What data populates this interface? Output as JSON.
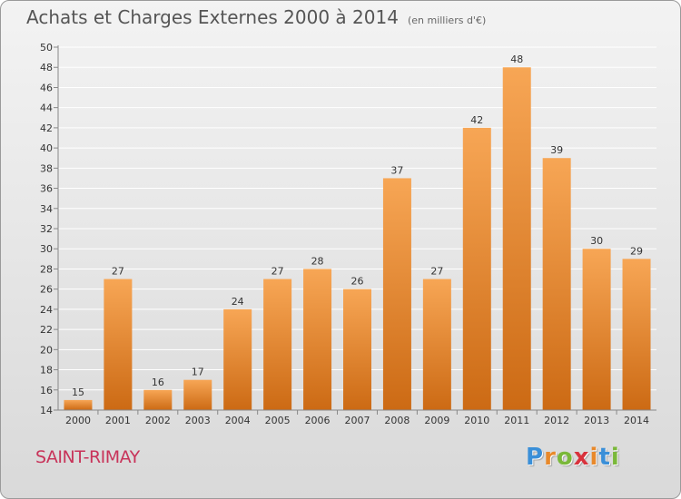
{
  "header": {
    "title": "Achats et Charges Externes 2000 à 2014",
    "unit_note": "(en milliers d'€)"
  },
  "footer": {
    "commune": "SAINT-RIMAY",
    "brand": "Proxiti",
    "brand_letters": [
      {
        "ch": "P",
        "color": "#3a8fd8"
      },
      {
        "ch": "r",
        "color": "#e8892b"
      },
      {
        "ch": "o",
        "color": "#7ab83a"
      },
      {
        "ch": "x",
        "color": "#d8323c"
      },
      {
        "ch": "i",
        "color": "#e8892b"
      },
      {
        "ch": "t",
        "color": "#3a8fd8"
      },
      {
        "ch": "i",
        "color": "#7ab83a"
      }
    ]
  },
  "chart_data": {
    "type": "bar",
    "title": "Achats et Charges Externes 2000 à 2014",
    "subtitle": "(en milliers d'€)",
    "categories": [
      "2000",
      "2001",
      "2002",
      "2003",
      "2004",
      "2005",
      "2006",
      "2007",
      "2008",
      "2009",
      "2010",
      "2011",
      "2012",
      "2013",
      "2014"
    ],
    "values": [
      15,
      27,
      16,
      17,
      24,
      27,
      28,
      26,
      37,
      27,
      42,
      48,
      39,
      30,
      29
    ],
    "ylim": [
      14,
      50
    ],
    "yticks": [
      14,
      16,
      18,
      20,
      22,
      24,
      26,
      28,
      30,
      32,
      34,
      36,
      38,
      40,
      42,
      44,
      46,
      48,
      50
    ],
    "grid": true,
    "legend": "none",
    "colors": {
      "bar_light": "#f7a655",
      "bar_dark": "#cc6a14",
      "grid": "#ffffff",
      "axis": "#888888",
      "text": "#333333"
    }
  }
}
